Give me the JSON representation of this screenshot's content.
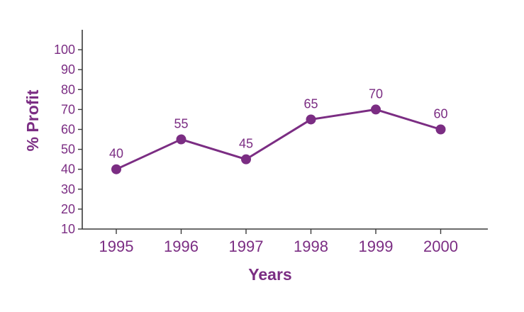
{
  "chart_data": {
    "type": "line",
    "xlabel": "Years",
    "ylabel": "% Profit",
    "categories": [
      "1995",
      "1996",
      "1997",
      "1998",
      "1999",
      "2000"
    ],
    "series": [
      {
        "values": [
          40,
          55,
          45,
          65,
          70,
          60
        ],
        "data_labels": [
          "40",
          "55",
          "45",
          "65",
          "70",
          "60"
        ]
      }
    ],
    "yticks": [
      10,
      20,
      30,
      40,
      50,
      60,
      70,
      80,
      90,
      100
    ],
    "ytick_labels": [
      "10",
      "20",
      "30",
      "40",
      "50",
      "60",
      "70",
      "80",
      "90",
      "100"
    ],
    "ylim": [
      10,
      110
    ],
    "grid": false,
    "legend": "none"
  },
  "colors": {
    "series": "#7B2D83",
    "axis": "#3a3a3a",
    "text": "#7B2D83"
  }
}
